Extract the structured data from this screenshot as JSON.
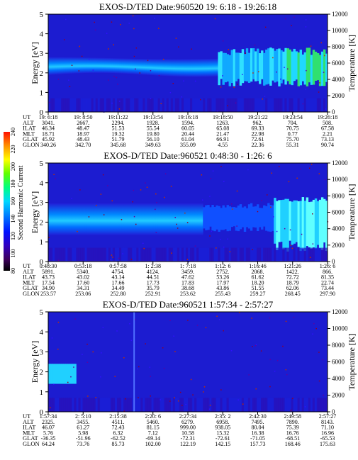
{
  "chart_data": [
    {
      "type": "heatmap",
      "title": "EXOS-D/TED   Date:960520  19: 6:18 - 19:26:18",
      "ylabel": "Energy [eV]",
      "y2label": "Temperature [K]",
      "ylim": [
        0,
        5
      ],
      "y2lim": [
        0,
        12000
      ],
      "yticks": [
        "0",
        "1",
        "2",
        "3",
        "4",
        "5"
      ],
      "y2ticks": [
        "0",
        "2000",
        "4000",
        "6000",
        "8000",
        "10000",
        "12000"
      ],
      "row_labels": [
        "UT",
        "ALT",
        "ILAT",
        "MLT",
        "GLAT",
        "GLON"
      ],
      "columns": [
        [
          "19: 6:18",
          "3041.",
          "46.34",
          "18.71",
          "45.92",
          "340.26"
        ],
        [
          "19: 8:50",
          "2667.",
          "48.47",
          "18.97",
          "48.43",
          "342.70"
        ],
        [
          "19:11:22",
          "2294.",
          "51.53",
          "19.32",
          "51.79",
          "345.68"
        ],
        [
          "19:13:54",
          "1928.",
          "55.54",
          "19.80",
          "56.10",
          "349.63"
        ],
        [
          "19:16:18",
          "1594.",
          "60.05",
          "20.44",
          "61.04",
          "355.09"
        ],
        [
          "19:18:50",
          "1263.",
          "65.08",
          "21.47",
          "66.91",
          "4.55"
        ],
        [
          "19:21:22",
          "962.",
          "69.33",
          "22.98",
          "72.61",
          "22.36"
        ],
        [
          "19:23:54",
          "704.",
          "70.75",
          "0.77",
          "75.70",
          "55.31"
        ],
        [
          "19:26:18",
          "508.",
          "67.58",
          "2.21",
          "73.13",
          "90.74"
        ]
      ]
    },
    {
      "type": "heatmap",
      "title": "EXOS-D/TED   Date:960521  0:48:30 - 1:26: 6",
      "ylabel": "Energy [eV]",
      "y2label": "Temperature [K]",
      "ylim": [
        0,
        5
      ],
      "y2lim": [
        0,
        12000
      ],
      "yticks": [
        "0",
        "1",
        "2",
        "3",
        "4",
        "5"
      ],
      "y2ticks": [
        "0",
        "2000",
        "4000",
        "6000",
        "8000",
        "10000",
        "12000"
      ],
      "row_labels": [
        "UT",
        "ALT",
        "ILAT",
        "MLT",
        "GLAT",
        "GLON"
      ],
      "columns": [
        [
          "0:48:30",
          "5891.",
          "43.73",
          "17.54",
          "34.90",
          "253.57"
        ],
        [
          "0:53:18",
          "5340.",
          "43.02",
          "17.60",
          "34.31",
          "253.06"
        ],
        [
          "0:57:58",
          "4754.",
          "43.14",
          "17.66",
          "34.49",
          "252.80"
        ],
        [
          "1: 2:38",
          "4124.",
          "44.51",
          "17.73",
          "35.79",
          "252.91"
        ],
        [
          "1: 7:18",
          "3459.",
          "47.62",
          "17.83",
          "38.68",
          "253.62"
        ],
        [
          "1:12: 6",
          "2752.",
          "53.26",
          "17.97",
          "43.86",
          "255.43"
        ],
        [
          "1:16:46",
          "2068.",
          "61.62",
          "18.20",
          "51.55",
          "259.27"
        ],
        [
          "1:21:26",
          "1422.",
          "72.72",
          "18.79",
          "62.06",
          "268.45"
        ],
        [
          "1:26: 6",
          "866.",
          "81.35",
          "22.74",
          "73.44",
          "297.90"
        ]
      ]
    },
    {
      "type": "heatmap",
      "title": "EXOS-D/TED   Date:960521  1:57:34 - 2:57:27",
      "ylabel": "Energy [eV]",
      "y2label": "Temperature [K]",
      "ylim": [
        0,
        5
      ],
      "y2lim": [
        0,
        12000
      ],
      "yticks": [
        "0",
        "1",
        "2",
        "3",
        "4",
        "5"
      ],
      "y2ticks": [
        "0",
        "2000",
        "4000",
        "6000",
        "8000",
        "10000",
        "12000"
      ],
      "row_labels": [
        "UT",
        "ALT",
        "ILAT",
        "MLT",
        "GLAT",
        "GLON"
      ],
      "columns": [
        [
          "1:57:34",
          "2325.",
          "46.07",
          "5.76",
          "-36.35",
          "64.24"
        ],
        [
          "2: 5:10",
          "3455.",
          "61.27",
          "5.98",
          "-51.96",
          "73.76"
        ],
        [
          "2:15:38",
          "4511.",
          "72.43",
          "6.32",
          "-62.52",
          "85.73"
        ],
        [
          "2:20: 6",
          "5460.",
          "81.15",
          "7.12",
          "-69.14",
          "102.00"
        ],
        [
          "2:27:34",
          "6279.",
          "999.00",
          "10.58",
          "-72.31",
          "122.19"
        ],
        [
          "2:35: 2",
          "6958.",
          "938.05",
          "15.32",
          "-72.61",
          "142.15"
        ],
        [
          "2:42:30",
          "7495.",
          "80.04",
          "16.38",
          "-71.05",
          "157.73"
        ],
        [
          "2:49:58",
          "7890.",
          "75.39",
          "16.76",
          "-68.51",
          "168.46"
        ],
        [
          "2:57:27",
          "8143.",
          "71.10",
          "16.96",
          "-65.53",
          "175.63"
        ]
      ]
    }
  ],
  "colorbar": {
    "label": "Second Harmonic Current",
    "ticks": [
      "80",
      "100",
      "120",
      "140",
      "160",
      "180",
      "200",
      "220",
      "240"
    ],
    "colors": [
      "#000000",
      "#5b0077",
      "#2a00d8",
      "#0018ff",
      "#0090ff",
      "#00e0ff",
      "#00ff60",
      "#a0ff00",
      "#ffff00",
      "#ffa000",
      "#ff2000"
    ]
  }
}
